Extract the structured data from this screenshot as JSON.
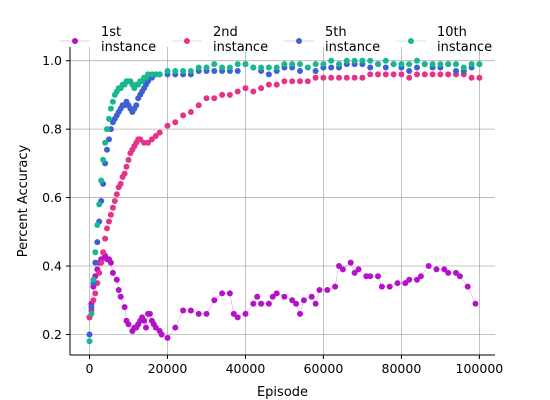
{
  "chart_data": {
    "type": "scatter",
    "xlabel": "Episode",
    "ylabel": "Percent Accuracy",
    "xlim": [
      -5000,
      104000
    ],
    "ylim": [
      0.14,
      1.04
    ],
    "xticks": [
      0,
      20000,
      40000,
      60000,
      80000,
      100000
    ],
    "yticks": [
      0.2,
      0.4,
      0.6,
      0.8,
      1.0
    ],
    "xtick_labels": [
      "0",
      "20000",
      "40000",
      "60000",
      "80000",
      "100000"
    ],
    "ytick_labels": [
      "0.2",
      "0.4",
      "0.6",
      "0.8",
      "1.0"
    ],
    "grid": true,
    "legend_position": "top",
    "series": [
      {
        "name": "1st instance",
        "color": "#b511c9",
        "connected": true,
        "points": [
          [
            0,
            0.25
          ],
          [
            500,
            0.29
          ],
          [
            1000,
            0.34
          ],
          [
            1500,
            0.37
          ],
          [
            2000,
            0.39
          ],
          [
            2500,
            0.41
          ],
          [
            3000,
            0.42
          ],
          [
            4000,
            0.43
          ],
          [
            4500,
            0.42
          ],
          [
            5000,
            0.42
          ],
          [
            5500,
            0.41
          ],
          [
            6000,
            0.38
          ],
          [
            7000,
            0.36
          ],
          [
            7500,
            0.33
          ],
          [
            8000,
            0.31
          ],
          [
            9000,
            0.28
          ],
          [
            9500,
            0.24
          ],
          [
            10000,
            0.23
          ],
          [
            11000,
            0.21
          ],
          [
            11500,
            0.22
          ],
          [
            12000,
            0.22
          ],
          [
            12500,
            0.23
          ],
          [
            13000,
            0.24
          ],
          [
            13500,
            0.25
          ],
          [
            14000,
            0.24
          ],
          [
            14500,
            0.22
          ],
          [
            15000,
            0.26
          ],
          [
            15500,
            0.26
          ],
          [
            16000,
            0.24
          ],
          [
            16500,
            0.23
          ],
          [
            17000,
            0.22
          ],
          [
            18000,
            0.21
          ],
          [
            18500,
            0.2
          ],
          [
            20000,
            0.19
          ],
          [
            22000,
            0.22
          ],
          [
            24000,
            0.27
          ],
          [
            26000,
            0.27
          ],
          [
            28000,
            0.26
          ],
          [
            30000,
            0.26
          ],
          [
            32000,
            0.3
          ],
          [
            34000,
            0.32
          ],
          [
            36000,
            0.32
          ],
          [
            37000,
            0.26
          ],
          [
            38000,
            0.25
          ],
          [
            40000,
            0.26
          ],
          [
            42000,
            0.29
          ],
          [
            43000,
            0.31
          ],
          [
            44000,
            0.29
          ],
          [
            46000,
            0.29
          ],
          [
            47000,
            0.31
          ],
          [
            48000,
            0.32
          ],
          [
            50000,
            0.31
          ],
          [
            52000,
            0.3
          ],
          [
            53000,
            0.29
          ],
          [
            54000,
            0.26
          ],
          [
            55000,
            0.3
          ],
          [
            57000,
            0.31
          ],
          [
            58000,
            0.29
          ],
          [
            59000,
            0.33
          ],
          [
            61000,
            0.33
          ],
          [
            63000,
            0.34
          ],
          [
            64000,
            0.4
          ],
          [
            65000,
            0.39
          ],
          [
            67000,
            0.41
          ],
          [
            68000,
            0.38
          ],
          [
            69000,
            0.39
          ],
          [
            71000,
            0.37
          ],
          [
            72000,
            0.37
          ],
          [
            74000,
            0.37
          ],
          [
            75000,
            0.34
          ],
          [
            77000,
            0.34
          ],
          [
            79000,
            0.35
          ],
          [
            81000,
            0.35
          ],
          [
            82000,
            0.36
          ],
          [
            84000,
            0.36
          ],
          [
            85000,
            0.37
          ],
          [
            87000,
            0.4
          ],
          [
            89000,
            0.39
          ],
          [
            91000,
            0.39
          ],
          [
            92000,
            0.38
          ],
          [
            94000,
            0.38
          ],
          [
            95000,
            0.37
          ],
          [
            97000,
            0.34
          ],
          [
            99000,
            0.29
          ]
        ]
      },
      {
        "name": "2nd instance",
        "color": "#e6338a",
        "connected": false,
        "points": [
          [
            0,
            0.25
          ],
          [
            500,
            0.27
          ],
          [
            1000,
            0.3
          ],
          [
            1500,
            0.32
          ],
          [
            2000,
            0.35
          ],
          [
            2500,
            0.38
          ],
          [
            3000,
            0.41
          ],
          [
            3500,
            0.44
          ],
          [
            4000,
            0.48
          ],
          [
            4500,
            0.51
          ],
          [
            5000,
            0.53
          ],
          [
            5500,
            0.55
          ],
          [
            6000,
            0.57
          ],
          [
            6500,
            0.59
          ],
          [
            7000,
            0.61
          ],
          [
            7500,
            0.63
          ],
          [
            8000,
            0.64
          ],
          [
            8500,
            0.66
          ],
          [
            9000,
            0.67
          ],
          [
            9500,
            0.69
          ],
          [
            10000,
            0.71
          ],
          [
            10500,
            0.73
          ],
          [
            11000,
            0.74
          ],
          [
            11500,
            0.75
          ],
          [
            12000,
            0.76
          ],
          [
            12500,
            0.77
          ],
          [
            13000,
            0.77
          ],
          [
            14000,
            0.76
          ],
          [
            15000,
            0.76
          ],
          [
            16000,
            0.77
          ],
          [
            17000,
            0.78
          ],
          [
            18000,
            0.79
          ],
          [
            20000,
            0.81
          ],
          [
            22000,
            0.82
          ],
          [
            24000,
            0.84
          ],
          [
            26000,
            0.85
          ],
          [
            28000,
            0.87
          ],
          [
            30000,
            0.89
          ],
          [
            32000,
            0.89
          ],
          [
            34000,
            0.9
          ],
          [
            36000,
            0.9
          ],
          [
            38000,
            0.91
          ],
          [
            40000,
            0.92
          ],
          [
            42000,
            0.91
          ],
          [
            44000,
            0.92
          ],
          [
            46000,
            0.93
          ],
          [
            48000,
            0.93
          ],
          [
            50000,
            0.94
          ],
          [
            52000,
            0.94
          ],
          [
            54000,
            0.94
          ],
          [
            56000,
            0.94
          ],
          [
            58000,
            0.95
          ],
          [
            60000,
            0.95
          ],
          [
            62000,
            0.95
          ],
          [
            64000,
            0.95
          ],
          [
            66000,
            0.95
          ],
          [
            68000,
            0.95
          ],
          [
            70000,
            0.95
          ],
          [
            72000,
            0.96
          ],
          [
            74000,
            0.96
          ],
          [
            76000,
            0.96
          ],
          [
            78000,
            0.96
          ],
          [
            80000,
            0.96
          ],
          [
            82000,
            0.95
          ],
          [
            84000,
            0.96
          ],
          [
            86000,
            0.96
          ],
          [
            88000,
            0.96
          ],
          [
            90000,
            0.96
          ],
          [
            92000,
            0.96
          ],
          [
            94000,
            0.96
          ],
          [
            96000,
            0.96
          ],
          [
            98000,
            0.95
          ],
          [
            100000,
            0.95
          ]
        ]
      },
      {
        "name": "5th instance",
        "color": "#3f5fd4",
        "connected": false,
        "points": [
          [
            0,
            0.2
          ],
          [
            500,
            0.28
          ],
          [
            1000,
            0.35
          ],
          [
            1500,
            0.41
          ],
          [
            2000,
            0.47
          ],
          [
            2500,
            0.53
          ],
          [
            3000,
            0.59
          ],
          [
            3500,
            0.64
          ],
          [
            4000,
            0.7
          ],
          [
            4500,
            0.74
          ],
          [
            5000,
            0.77
          ],
          [
            5500,
            0.8
          ],
          [
            6000,
            0.82
          ],
          [
            6500,
            0.83
          ],
          [
            7000,
            0.84
          ],
          [
            7500,
            0.85
          ],
          [
            8000,
            0.86
          ],
          [
            8500,
            0.87
          ],
          [
            9000,
            0.87
          ],
          [
            9500,
            0.88
          ],
          [
            10000,
            0.87
          ],
          [
            10500,
            0.86
          ],
          [
            11000,
            0.85
          ],
          [
            11500,
            0.86
          ],
          [
            12000,
            0.87
          ],
          [
            12500,
            0.89
          ],
          [
            13000,
            0.9
          ],
          [
            13500,
            0.91
          ],
          [
            14000,
            0.92
          ],
          [
            14500,
            0.93
          ],
          [
            15000,
            0.94
          ],
          [
            16000,
            0.95
          ],
          [
            17000,
            0.96
          ],
          [
            18000,
            0.96
          ],
          [
            20000,
            0.96
          ],
          [
            22000,
            0.96
          ],
          [
            24000,
            0.96
          ],
          [
            26000,
            0.96
          ],
          [
            28000,
            0.97
          ],
          [
            30000,
            0.97
          ],
          [
            32000,
            0.97
          ],
          [
            34000,
            0.97
          ],
          [
            36000,
            0.97
          ],
          [
            38000,
            0.97
          ],
          [
            40000,
            0.99
          ],
          [
            42000,
            0.98
          ],
          [
            44000,
            0.97
          ],
          [
            46000,
            0.96
          ],
          [
            48000,
            0.97
          ],
          [
            50000,
            0.98
          ],
          [
            52000,
            0.98
          ],
          [
            54000,
            0.97
          ],
          [
            56000,
            0.98
          ],
          [
            58000,
            0.97
          ],
          [
            60000,
            0.98
          ],
          [
            62000,
            0.98
          ],
          [
            64000,
            0.98
          ],
          [
            66000,
            0.99
          ],
          [
            68000,
            0.99
          ],
          [
            70000,
            0.99
          ],
          [
            72000,
            0.98
          ],
          [
            74000,
            0.99
          ],
          [
            76000,
            0.98
          ],
          [
            78000,
            0.99
          ],
          [
            80000,
            0.98
          ],
          [
            82000,
            0.97
          ],
          [
            84000,
            0.98
          ],
          [
            86000,
            0.99
          ],
          [
            88000,
            0.98
          ],
          [
            90000,
            0.98
          ],
          [
            92000,
            0.99
          ],
          [
            94000,
            0.97
          ],
          [
            96000,
            0.97
          ],
          [
            98000,
            0.98
          ],
          [
            100000,
            0.99
          ]
        ]
      },
      {
        "name": "10th instance",
        "color": "#17b890",
        "connected": false,
        "points": [
          [
            0,
            0.18
          ],
          [
            500,
            0.26
          ],
          [
            1000,
            0.36
          ],
          [
            1500,
            0.44
          ],
          [
            2000,
            0.52
          ],
          [
            2500,
            0.58
          ],
          [
            3000,
            0.65
          ],
          [
            3500,
            0.71
          ],
          [
            4000,
            0.76
          ],
          [
            4500,
            0.8
          ],
          [
            5000,
            0.83
          ],
          [
            5500,
            0.86
          ],
          [
            6000,
            0.88
          ],
          [
            6500,
            0.9
          ],
          [
            7000,
            0.91
          ],
          [
            7500,
            0.92
          ],
          [
            8000,
            0.92
          ],
          [
            8500,
            0.93
          ],
          [
            9000,
            0.93
          ],
          [
            9500,
            0.94
          ],
          [
            10000,
            0.94
          ],
          [
            10500,
            0.94
          ],
          [
            11000,
            0.93
          ],
          [
            11500,
            0.92
          ],
          [
            12000,
            0.93
          ],
          [
            12500,
            0.93
          ],
          [
            13000,
            0.94
          ],
          [
            13500,
            0.94
          ],
          [
            14000,
            0.95
          ],
          [
            14500,
            0.95
          ],
          [
            15000,
            0.96
          ],
          [
            16000,
            0.96
          ],
          [
            17000,
            0.96
          ],
          [
            18000,
            0.96
          ],
          [
            20000,
            0.97
          ],
          [
            22000,
            0.97
          ],
          [
            24000,
            0.97
          ],
          [
            26000,
            0.97
          ],
          [
            28000,
            0.98
          ],
          [
            30000,
            0.98
          ],
          [
            32000,
            0.99
          ],
          [
            34000,
            0.98
          ],
          [
            36000,
            0.98
          ],
          [
            38000,
            0.99
          ],
          [
            40000,
            0.99
          ],
          [
            42000,
            0.98
          ],
          [
            44000,
            0.98
          ],
          [
            46000,
            0.98
          ],
          [
            48000,
            0.98
          ],
          [
            50000,
            0.99
          ],
          [
            52000,
            0.99
          ],
          [
            54000,
            0.99
          ],
          [
            56000,
            0.98
          ],
          [
            58000,
            0.99
          ],
          [
            60000,
            0.99
          ],
          [
            62000,
            1.0
          ],
          [
            64000,
            0.99
          ],
          [
            66000,
            1.0
          ],
          [
            68000,
            1.0
          ],
          [
            70000,
            1.0
          ],
          [
            72000,
            1.0
          ],
          [
            74000,
            0.99
          ],
          [
            76000,
            1.0
          ],
          [
            78000,
            0.99
          ],
          [
            80000,
            0.99
          ],
          [
            82000,
            0.99
          ],
          [
            84000,
            1.0
          ],
          [
            86000,
            0.99
          ],
          [
            88000,
            0.99
          ],
          [
            90000,
            0.99
          ],
          [
            92000,
            0.99
          ],
          [
            94000,
            0.99
          ],
          [
            96000,
            0.98
          ],
          [
            98000,
            0.99
          ],
          [
            100000,
            0.99
          ]
        ]
      }
    ]
  }
}
